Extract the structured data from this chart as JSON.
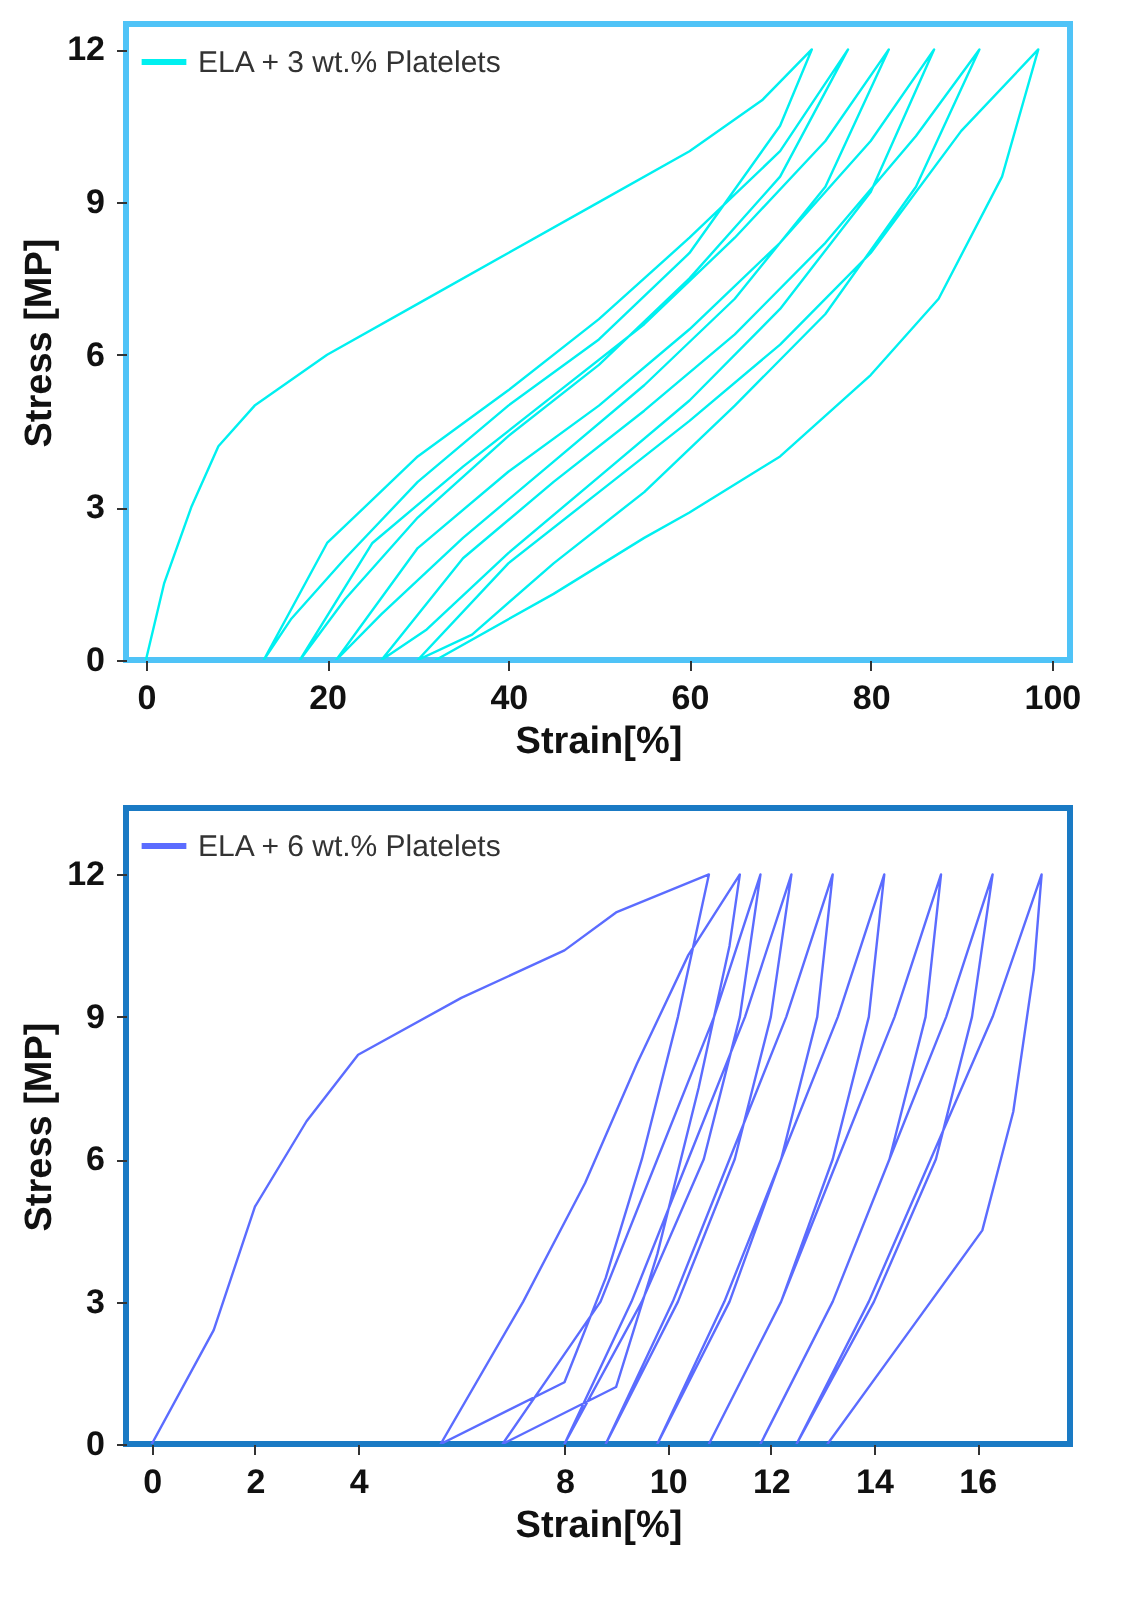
{
  "chart_data": [
    {
      "type": "line",
      "xlabel": "Strain[%]",
      "ylabel": "Stress [MP]",
      "legend": "top left",
      "xlim": [
        -2.2,
        102
      ],
      "ylim": [
        0,
        12.5
      ],
      "xticks": [
        0,
        20,
        40,
        60,
        80,
        100
      ],
      "yticks": [
        0,
        3,
        6,
        9,
        12
      ],
      "series": [
        {
          "name": "ELA + 3 wt.% Platelets",
          "color": "#00f0f0",
          "x": [
            0,
            2,
            5,
            8,
            12,
            20,
            30,
            40,
            50,
            60,
            68,
            73.5,
            70,
            60,
            50,
            40,
            30,
            22,
            16,
            13,
            20,
            30,
            40,
            50,
            60,
            70,
            77.5,
            70,
            60,
            50,
            40,
            30,
            22,
            17,
            25,
            35,
            45,
            55,
            65,
            75,
            82,
            75,
            65,
            55,
            45,
            35,
            26,
            21,
            30,
            40,
            50,
            60,
            70,
            80,
            87,
            80,
            70,
            60,
            50,
            40,
            31,
            26,
            35,
            45,
            55,
            65,
            75,
            85,
            92,
            85,
            75,
            65,
            55,
            45,
            36,
            30,
            40,
            50,
            60,
            70,
            80,
            90,
            98.5,
            94.5,
            87.5,
            80,
            70,
            60,
            55,
            45,
            32
          ],
          "values": [
            0,
            1.5,
            3,
            4.2,
            5,
            6,
            7,
            8,
            9,
            10,
            11,
            12,
            10.5,
            8,
            6.3,
            5,
            3.5,
            2,
            0.8,
            0,
            2.3,
            4,
            5.3,
            6.7,
            8.3,
            10,
            12,
            9.5,
            7.5,
            5.8,
            4.4,
            2.8,
            1.2,
            0,
            2.3,
            3.8,
            5.2,
            6.6,
            8.3,
            10.2,
            12,
            9.3,
            7.1,
            5.4,
            3.9,
            2.4,
            0.9,
            0,
            2.2,
            3.7,
            5,
            6.5,
            8.2,
            10.2,
            12,
            9.2,
            6.9,
            5.1,
            3.6,
            2.1,
            0.6,
            0,
            2,
            3.5,
            4.9,
            6.4,
            8.2,
            10.3,
            12,
            9.3,
            6.8,
            5,
            3.3,
            1.9,
            0.5,
            0,
            1.9,
            3.3,
            4.7,
            6.2,
            8,
            10.4,
            12,
            9.5,
            7.1,
            5.6,
            4,
            2.9,
            2.4,
            1.3,
            0
          ]
        }
      ]
    },
    {
      "type": "line",
      "xlabel": "Strain[%]",
      "ylabel": "Stress [MP]",
      "legend": "top left",
      "xlim": [
        -0.5,
        17.8
      ],
      "ylim": [
        0,
        13.4
      ],
      "xticks": [
        0,
        2,
        4,
        8,
        10,
        12,
        14,
        16
      ],
      "yticks": [
        0,
        3,
        6,
        9,
        12
      ],
      "series": [
        {
          "name": "ELA + 6 wt.% Platelets",
          "color": "#5b6cff",
          "x": [
            0,
            1.2,
            2,
            3,
            4,
            6,
            8,
            9,
            10.8,
            10.6,
            10.2,
            9.5,
            8.8,
            8,
            5.6,
            7.2,
            8.4,
            9.4,
            10.4,
            11.4,
            11.2,
            10.6,
            9.8,
            9,
            6.8,
            8.7,
            9.8,
            10.9,
            11.8,
            11.4,
            10.7,
            9.5,
            8,
            9.3,
            10.4,
            11.5,
            12.4,
            12,
            11.3,
            10.2,
            8.8,
            10.1,
            11.2,
            12.3,
            13.2,
            12.9,
            12.2,
            11.2,
            9.8,
            11.1,
            12.2,
            13.3,
            14.2,
            13.9,
            13.2,
            12.2,
            10.8,
            12.2,
            13.3,
            14.4,
            15.3,
            15,
            14.3,
            13.2,
            11.8,
            13.2,
            14.3,
            15.4,
            16.3,
            15.9,
            15.2,
            14,
            12.5,
            13.9,
            15.1,
            16.3,
            17.25,
            17.1,
            16.7,
            16.1,
            14.7,
            13.1
          ],
          "values": [
            0,
            2.4,
            5,
            6.8,
            8.2,
            9.4,
            10.4,
            11.2,
            12,
            11,
            9,
            6,
            3.5,
            1.3,
            0,
            3,
            5.5,
            8,
            10.3,
            12,
            10.5,
            7.5,
            4,
            1.2,
            0,
            3,
            6,
            9,
            12,
            9,
            6,
            3,
            0,
            3,
            6,
            9,
            12,
            9,
            6,
            3,
            0,
            3,
            6,
            9,
            12,
            9,
            6,
            3,
            0,
            3,
            6,
            9,
            12,
            9,
            6,
            3,
            0,
            3,
            6,
            9,
            12,
            9,
            6,
            3,
            0,
            3,
            6,
            9,
            12,
            9,
            6,
            3,
            0,
            3,
            6,
            9,
            12,
            10,
            7,
            4.5,
            2.4,
            0
          ]
        }
      ]
    }
  ]
}
